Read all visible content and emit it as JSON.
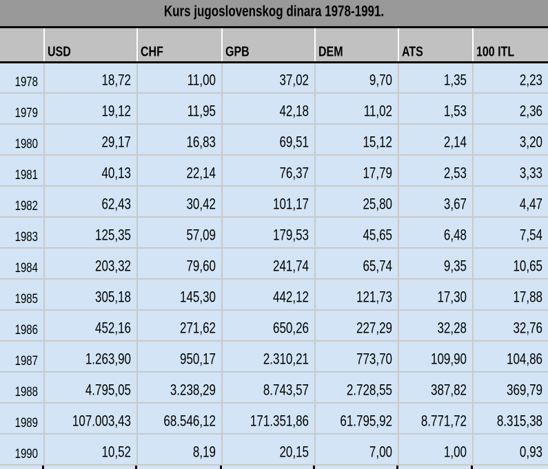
{
  "title": "Kurs jugoslovenskog dinara 1978-1991.",
  "table": {
    "columns": [
      "",
      "USD",
      "CHF",
      "GPB",
      "DEM",
      "ATS",
      "100 ITL"
    ],
    "rows": [
      {
        "year": "1978",
        "values": [
          "18,72",
          "11,00",
          "37,02",
          "9,70",
          "1,35",
          "2,23"
        ]
      },
      {
        "year": "1979",
        "values": [
          "19,12",
          "11,95",
          "42,18",
          "11,02",
          "1,53",
          "2,36"
        ]
      },
      {
        "year": "1980",
        "values": [
          "29,17",
          "16,83",
          "69,51",
          "15,12",
          "2,14",
          "3,20"
        ]
      },
      {
        "year": "1981",
        "values": [
          "40,13",
          "22,14",
          "76,37",
          "17,79",
          "2,53",
          "3,33"
        ]
      },
      {
        "year": "1982",
        "values": [
          "62,43",
          "30,42",
          "101,17",
          "25,80",
          "3,67",
          "4,47"
        ]
      },
      {
        "year": "1983",
        "values": [
          "125,35",
          "57,09",
          "179,53",
          "45,65",
          "6,48",
          "7,54"
        ]
      },
      {
        "year": "1984",
        "values": [
          "203,32",
          "79,60",
          "241,74",
          "65,74",
          "9,35",
          "10,65"
        ]
      },
      {
        "year": "1985",
        "values": [
          "305,18",
          "145,30",
          "442,12",
          "121,73",
          "17,30",
          "17,88"
        ]
      },
      {
        "year": "1986",
        "values": [
          "452,16",
          "271,62",
          "650,26",
          "227,29",
          "32,28",
          "32,76"
        ]
      },
      {
        "year": "1987",
        "values": [
          "1.263,90",
          "950,17",
          "2.310,21",
          "773,70",
          "109,90",
          "104,86"
        ]
      },
      {
        "year": "1988",
        "values": [
          "4.795,05",
          "3.238,29",
          "8.743,57",
          "2.728,55",
          "387,82",
          "369,79"
        ]
      },
      {
        "year": "1989",
        "values": [
          "107.003,43",
          "68.546,12",
          "171.351,86",
          "61.795,92",
          "8.771,72",
          "8.315,38"
        ]
      },
      {
        "year": "1990",
        "values": [
          "10,52",
          "8,19",
          "20,15",
          "7,00",
          "1,00",
          "0,93"
        ]
      }
    ]
  },
  "colors": {
    "title_bg": "#999999",
    "header_bg": "#c1c1c1",
    "cell_bg": "#d2e4f5",
    "grid_line": "#c9c9c9",
    "header_separator": "#ffffff",
    "border": "#000000"
  }
}
